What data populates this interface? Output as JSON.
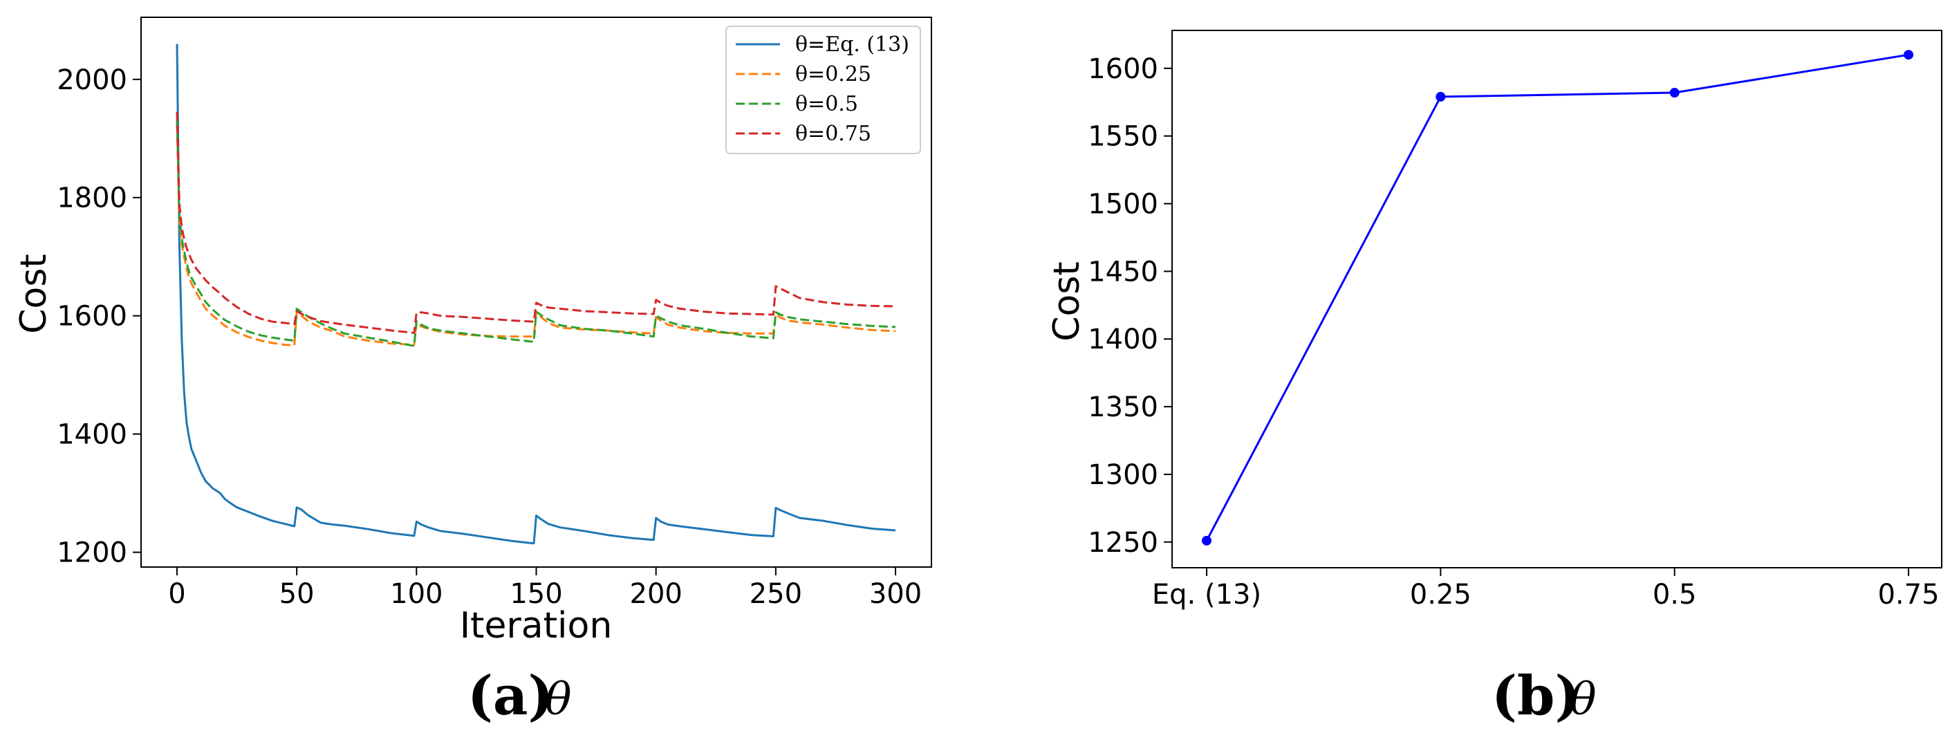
{
  "chart_data": [
    {
      "type": "line",
      "caption_label": "(a)",
      "caption_symbol": "θ",
      "xlabel": "Iteration",
      "ylabel": "Cost",
      "xlim": [
        -15,
        315
      ],
      "ylim": [
        1175,
        2105
      ],
      "xticks": [
        0,
        50,
        100,
        150,
        200,
        250,
        300
      ],
      "yticks": [
        1200,
        1400,
        1600,
        1800,
        2000
      ],
      "legend_position": "top-right",
      "grid": false,
      "series": [
        {
          "name": "θ=Eq. (13)",
          "color": "#1f77b4",
          "dash": "solid",
          "x": [
            0,
            1,
            2,
            3,
            4,
            5,
            6,
            8,
            10,
            12,
            15,
            18,
            20,
            22,
            25,
            30,
            35,
            40,
            45,
            49,
            50,
            52,
            55,
            60,
            65,
            70,
            80,
            90,
            99,
            100,
            102,
            105,
            110,
            120,
            130,
            140,
            149,
            150,
            152,
            155,
            160,
            170,
            180,
            190,
            199,
            200,
            202,
            205,
            210,
            220,
            230,
            240,
            249,
            250,
            252,
            255,
            260,
            270,
            280,
            290,
            300
          ],
          "y": [
            2060,
            1720,
            1560,
            1470,
            1420,
            1395,
            1375,
            1355,
            1335,
            1320,
            1308,
            1300,
            1290,
            1284,
            1276,
            1268,
            1260,
            1253,
            1248,
            1244,
            1276,
            1272,
            1262,
            1250,
            1247,
            1245,
            1239,
            1232,
            1228,
            1252,
            1247,
            1242,
            1236,
            1231,
            1225,
            1219,
            1215,
            1262,
            1256,
            1248,
            1242,
            1236,
            1229,
            1224,
            1221,
            1258,
            1252,
            1247,
            1244,
            1239,
            1234,
            1229,
            1227,
            1275,
            1271,
            1266,
            1258,
            1253,
            1246,
            1240,
            1237
          ]
        },
        {
          "name": "θ=0.25",
          "color": "#ff7f0e",
          "dash": "dashed",
          "x": [
            0,
            1,
            2,
            3,
            4,
            5,
            6,
            8,
            10,
            12,
            15,
            18,
            20,
            25,
            30,
            35,
            40,
            45,
            49,
            50,
            52,
            55,
            60,
            65,
            70,
            80,
            90,
            99,
            100,
            102,
            105,
            110,
            120,
            130,
            140,
            149,
            150,
            152,
            155,
            160,
            170,
            180,
            190,
            199,
            200,
            202,
            205,
            210,
            220,
            230,
            240,
            249,
            250,
            252,
            255,
            260,
            270,
            280,
            290,
            300
          ],
          "y": [
            1925,
            1760,
            1720,
            1700,
            1680,
            1665,
            1655,
            1640,
            1625,
            1612,
            1600,
            1590,
            1583,
            1572,
            1564,
            1558,
            1554,
            1551,
            1550,
            1607,
            1600,
            1590,
            1580,
            1574,
            1565,
            1558,
            1553,
            1551,
            1588,
            1582,
            1578,
            1573,
            1568,
            1566,
            1565,
            1565,
            1605,
            1598,
            1588,
            1580,
            1577,
            1575,
            1572,
            1570,
            1598,
            1592,
            1585,
            1580,
            1574,
            1571,
            1570,
            1570,
            1603,
            1597,
            1592,
            1589,
            1585,
            1580,
            1576,
            1574
          ]
        },
        {
          "name": "θ=0.5",
          "color": "#2ca02c",
          "dash": "dashed",
          "x": [
            0,
            1,
            2,
            3,
            4,
            5,
            6,
            8,
            10,
            12,
            15,
            18,
            20,
            25,
            30,
            35,
            40,
            45,
            49,
            50,
            52,
            55,
            60,
            65,
            70,
            80,
            90,
            99,
            100,
            102,
            105,
            110,
            120,
            130,
            140,
            149,
            150,
            152,
            155,
            160,
            170,
            180,
            190,
            199,
            200,
            202,
            205,
            210,
            220,
            230,
            240,
            249,
            250,
            252,
            255,
            260,
            270,
            280,
            290,
            300
          ],
          "y": [
            1930,
            1770,
            1730,
            1710,
            1690,
            1675,
            1665,
            1650,
            1637,
            1623,
            1610,
            1600,
            1593,
            1582,
            1573,
            1567,
            1563,
            1560,
            1558,
            1612,
            1606,
            1598,
            1587,
            1578,
            1570,
            1563,
            1556,
            1549,
            1591,
            1585,
            1579,
            1575,
            1570,
            1565,
            1560,
            1556,
            1607,
            1601,
            1594,
            1584,
            1578,
            1575,
            1570,
            1565,
            1600,
            1596,
            1590,
            1584,
            1578,
            1571,
            1565,
            1562,
            1606,
            1602,
            1598,
            1594,
            1590,
            1586,
            1583,
            1581
          ]
        },
        {
          "name": "θ=0.75",
          "color": "#d62728",
          "dash": "dashed",
          "x": [
            0,
            1,
            2,
            3,
            4,
            5,
            6,
            8,
            10,
            12,
            15,
            18,
            20,
            25,
            30,
            35,
            40,
            45,
            49,
            50,
            52,
            55,
            60,
            65,
            70,
            80,
            90,
            99,
            100,
            102,
            105,
            110,
            120,
            130,
            140,
            149,
            150,
            152,
            155,
            160,
            170,
            180,
            190,
            199,
            200,
            202,
            205,
            210,
            220,
            230,
            240,
            249,
            250,
            252,
            255,
            260,
            270,
            280,
            290,
            300
          ],
          "y": [
            1945,
            1790,
            1750,
            1730,
            1715,
            1705,
            1695,
            1680,
            1670,
            1660,
            1648,
            1638,
            1630,
            1615,
            1603,
            1595,
            1590,
            1588,
            1586,
            1608,
            1603,
            1598,
            1591,
            1588,
            1585,
            1580,
            1575,
            1571,
            1605,
            1606,
            1604,
            1600,
            1598,
            1595,
            1592,
            1590,
            1622,
            1618,
            1614,
            1612,
            1608,
            1606,
            1604,
            1603,
            1627,
            1622,
            1617,
            1612,
            1607,
            1604,
            1603,
            1602,
            1650,
            1646,
            1640,
            1630,
            1623,
            1619,
            1617,
            1616
          ]
        }
      ]
    },
    {
      "type": "line",
      "caption_label": "(b)",
      "caption_symbol": "θ",
      "xlabel": "",
      "ylabel": "Cost",
      "ylim": [
        1231,
        1628
      ],
      "yticks": [
        1250,
        1300,
        1350,
        1400,
        1450,
        1500,
        1550,
        1600
      ],
      "categories": [
        "Eq. (13)",
        "0.25",
        "0.5",
        "0.75"
      ],
      "grid": false,
      "series": [
        {
          "color": "#0000ff",
          "marker": "circle",
          "values": [
            1251,
            1579,
            1582,
            1610
          ]
        }
      ]
    }
  ]
}
